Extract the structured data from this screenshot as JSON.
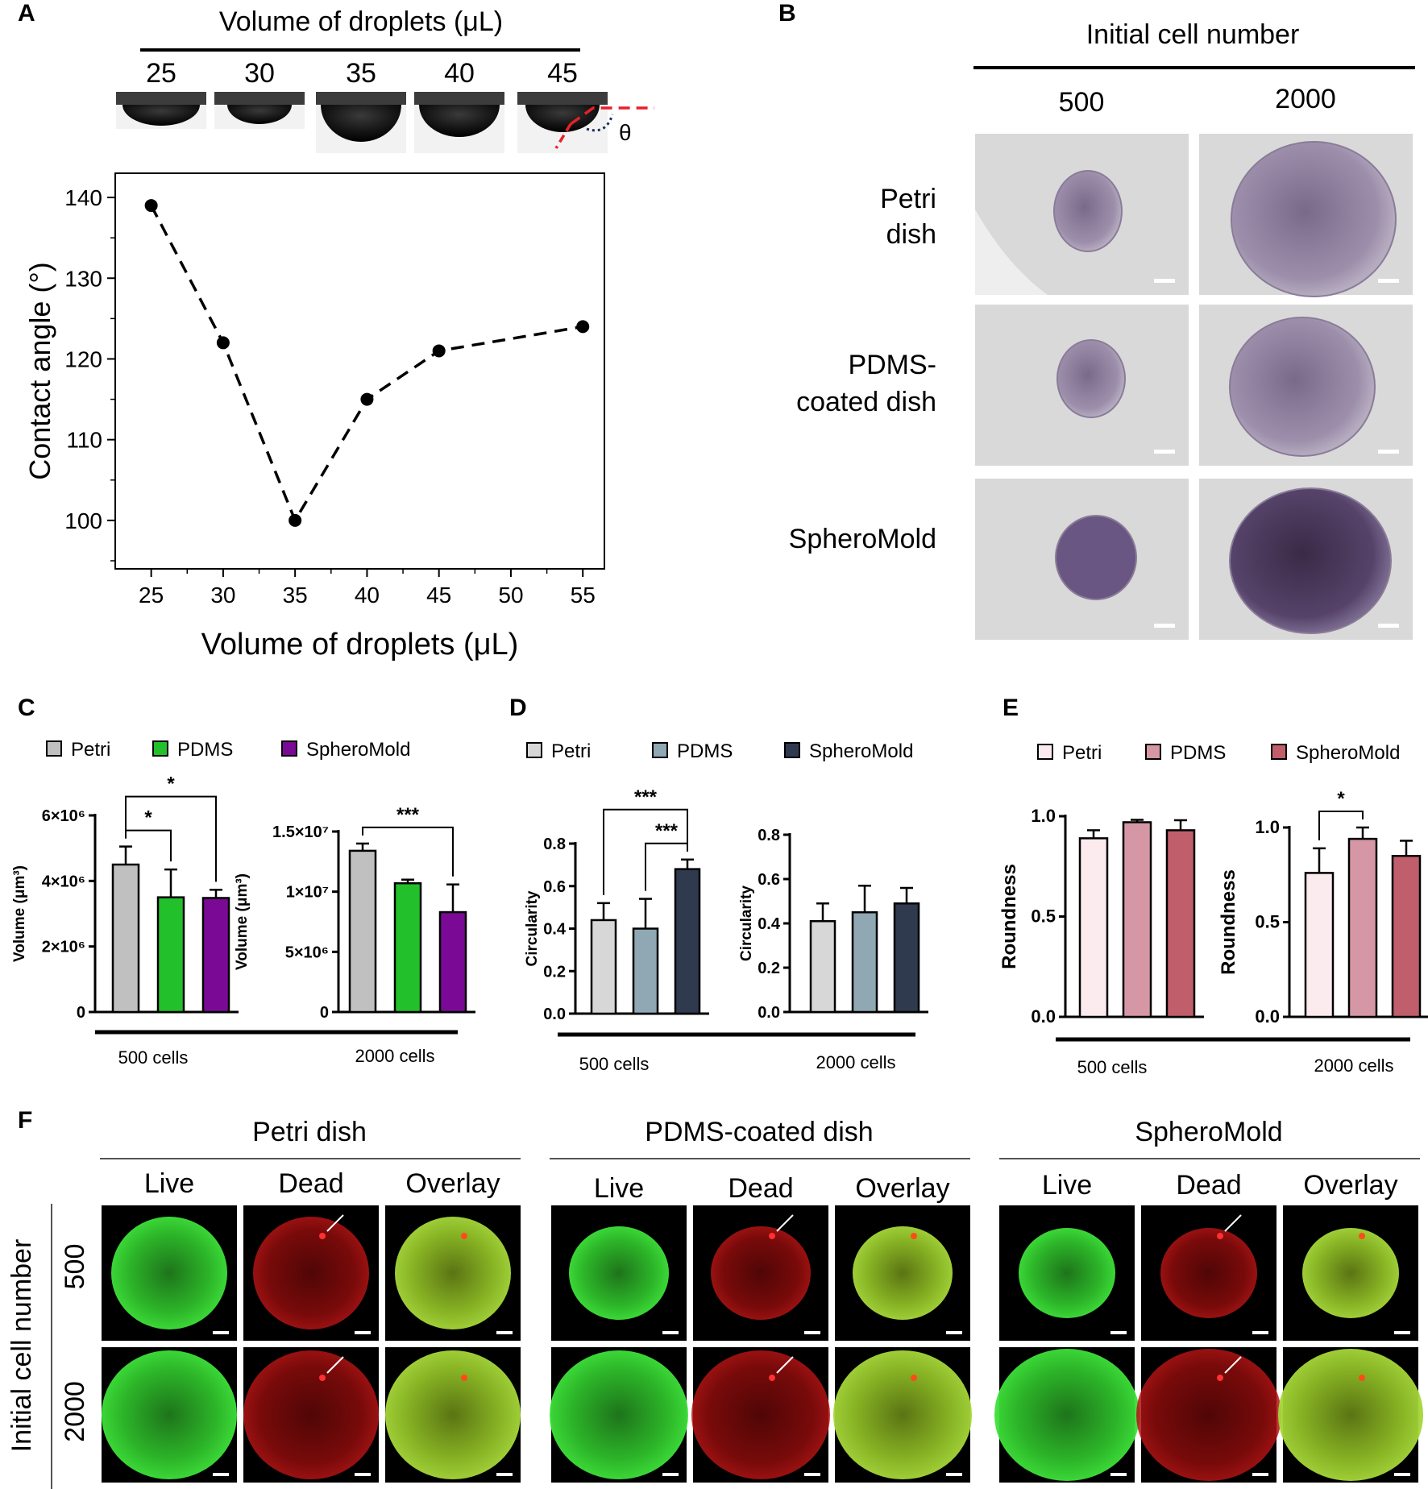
{
  "panels": {
    "A": {
      "letter": "A",
      "droplet_header": "Volume of droplets (μL)",
      "droplet_volumes": [
        "25",
        "30",
        "35",
        "40",
        "45"
      ],
      "theta_symbol": "θ"
    },
    "B": {
      "letter": "B",
      "header": "Initial cell number",
      "columns": [
        "500",
        "2000"
      ],
      "rows": [
        [
          "Petri",
          "dish"
        ],
        [
          "PDMS-",
          "coated dish"
        ],
        [
          "SpheroMold"
        ]
      ]
    },
    "C": {
      "letter": "C",
      "legend": [
        "Petri",
        "PDMS",
        "SpheroMold"
      ]
    },
    "D": {
      "letter": "D",
      "legend": [
        "Petri",
        "PDMS",
        "SpheroMold"
      ]
    },
    "E": {
      "letter": "E",
      "legend": [
        "Petri",
        "PDMS",
        "SpheroMold"
      ]
    },
    "F": {
      "letter": "F",
      "groups": [
        "Petri dish",
        "PDMS-coated dish",
        "SpheroMold"
      ],
      "channels": [
        "Live",
        "Dead",
        "Overlay"
      ],
      "row_header": "Initial cell number",
      "rows": [
        "500",
        "2000"
      ]
    }
  },
  "colors": {
    "C": [
      "#c0c0c0",
      "#22c02a",
      "#7a0a96"
    ],
    "D": [
      "#d7d7d7",
      "#8fa8b3",
      "#2f3a4e"
    ],
    "E": [
      "#fbeaee",
      "#d597a6",
      "#c05f6b"
    ],
    "dashed_red": "#e8202a",
    "live": "#2ec42a",
    "dead": "#c81818"
  },
  "chart_data": [
    {
      "id": "A",
      "type": "scatter",
      "xlabel": "Volume of droplets (μL)",
      "ylabel": "Contact angle (°)",
      "x": [
        25,
        30,
        35,
        40,
        45,
        55
      ],
      "y": [
        139,
        122,
        100,
        115,
        121,
        124
      ],
      "xticks": [
        "25",
        "30",
        "35",
        "40",
        "45",
        "50",
        "55"
      ],
      "yticks": [
        "100",
        "110",
        "120",
        "130",
        "140"
      ],
      "xlim": [
        22.5,
        56.5
      ],
      "ylim": [
        94,
        143
      ],
      "line": "dashed"
    },
    {
      "id": "C-500",
      "type": "bar",
      "ylabel": "Volume (μm³)",
      "group_label": "500 cells",
      "group_line_label": "",
      "categories": [
        "Petri",
        "PDMS",
        "SpheroMold"
      ],
      "values": [
        4500000,
        3500000,
        3480000
      ],
      "errors": [
        550000,
        850000,
        250000
      ],
      "ylim": [
        0,
        6000000
      ],
      "yticks": [
        {
          "v": 0,
          "t": "0"
        },
        {
          "v": 2000000,
          "t": "2×10⁶"
        },
        {
          "v": 4000000,
          "t": "4×10⁶"
        },
        {
          "v": 6000000,
          "t": "6×10⁶"
        }
      ],
      "significance": [
        {
          "from": 0,
          "to": 1,
          "label": "*",
          "level": 0
        },
        {
          "from": 0,
          "to": 2,
          "label": "*",
          "level": 1
        }
      ]
    },
    {
      "id": "C-2000",
      "type": "bar",
      "ylabel": "Volume (μm³)",
      "group_label": "2000 cells",
      "categories": [
        "Petri",
        "PDMS",
        "SpheroMold"
      ],
      "values": [
        13400000,
        10700000,
        8300000
      ],
      "errors": [
        600000,
        300000,
        2300000
      ],
      "ylim": [
        0,
        15000000
      ],
      "yticks": [
        {
          "v": 0,
          "t": "0"
        },
        {
          "v": 5000000,
          "t": "5×10⁶"
        },
        {
          "v": 10000000,
          "t": "1×10⁷"
        },
        {
          "v": 15000000,
          "t": "1.5×10⁷"
        }
      ],
      "significance": [
        {
          "from": 0,
          "to": 2,
          "label": "***",
          "level": 0
        }
      ]
    },
    {
      "id": "D-500",
      "type": "bar",
      "ylabel": "Circularity",
      "group_label": "500 cells",
      "categories": [
        "Petri",
        "PDMS",
        "SpheroMold"
      ],
      "values": [
        0.44,
        0.4,
        0.68
      ],
      "errors": [
        0.08,
        0.14,
        0.045
      ],
      "ylim": [
        0,
        0.8
      ],
      "yticks": [
        {
          "v": 0,
          "t": "0.0"
        },
        {
          "v": 0.2,
          "t": "0.2"
        },
        {
          "v": 0.4,
          "t": "0.4"
        },
        {
          "v": 0.6,
          "t": "0.6"
        },
        {
          "v": 0.8,
          "t": "0.8"
        }
      ],
      "significance": [
        {
          "from": 1,
          "to": 2,
          "label": "***",
          "level": 0
        },
        {
          "from": 0,
          "to": 2,
          "label": "***",
          "level": 1
        }
      ]
    },
    {
      "id": "D-2000",
      "type": "bar",
      "ylabel": "Circularity",
      "group_label": "2000 cells",
      "categories": [
        "Petri",
        "PDMS",
        "SpheroMold"
      ],
      "values": [
        0.41,
        0.45,
        0.49
      ],
      "errors": [
        0.08,
        0.12,
        0.07
      ],
      "ylim": [
        0,
        0.8
      ],
      "yticks": [
        {
          "v": 0,
          "t": "0.0"
        },
        {
          "v": 0.2,
          "t": "0.2"
        },
        {
          "v": 0.4,
          "t": "0.4"
        },
        {
          "v": 0.6,
          "t": "0.6"
        },
        {
          "v": 0.8,
          "t": "0.8"
        }
      ],
      "significance": []
    },
    {
      "id": "E-500",
      "type": "bar",
      "ylabel": "Roundness",
      "group_label": "500 cells",
      "categories": [
        "Petri",
        "PDMS",
        "SpheroMold"
      ],
      "values": [
        0.89,
        0.97,
        0.93
      ],
      "errors": [
        0.04,
        0.012,
        0.05
      ],
      "ylim": [
        0,
        1.0
      ],
      "yticks": [
        {
          "v": 0,
          "t": "0.0"
        },
        {
          "v": 0.5,
          "t": "0.5"
        },
        {
          "v": 1.0,
          "t": "1.0"
        }
      ],
      "significance": []
    },
    {
      "id": "E-2000",
      "type": "bar",
      "ylabel": "Roundness",
      "group_label": "2000 cells",
      "categories": [
        "Petri",
        "PDMS",
        "SpheroMold"
      ],
      "values": [
        0.76,
        0.94,
        0.85
      ],
      "errors": [
        0.13,
        0.06,
        0.08
      ],
      "ylim": [
        0,
        1.0
      ],
      "yticks": [
        {
          "v": 0,
          "t": "0.0"
        },
        {
          "v": 0.5,
          "t": "0.5"
        },
        {
          "v": 1.0,
          "t": "1.0"
        }
      ],
      "significance": [
        {
          "from": 0,
          "to": 1,
          "label": "*",
          "level": 0
        }
      ]
    }
  ]
}
